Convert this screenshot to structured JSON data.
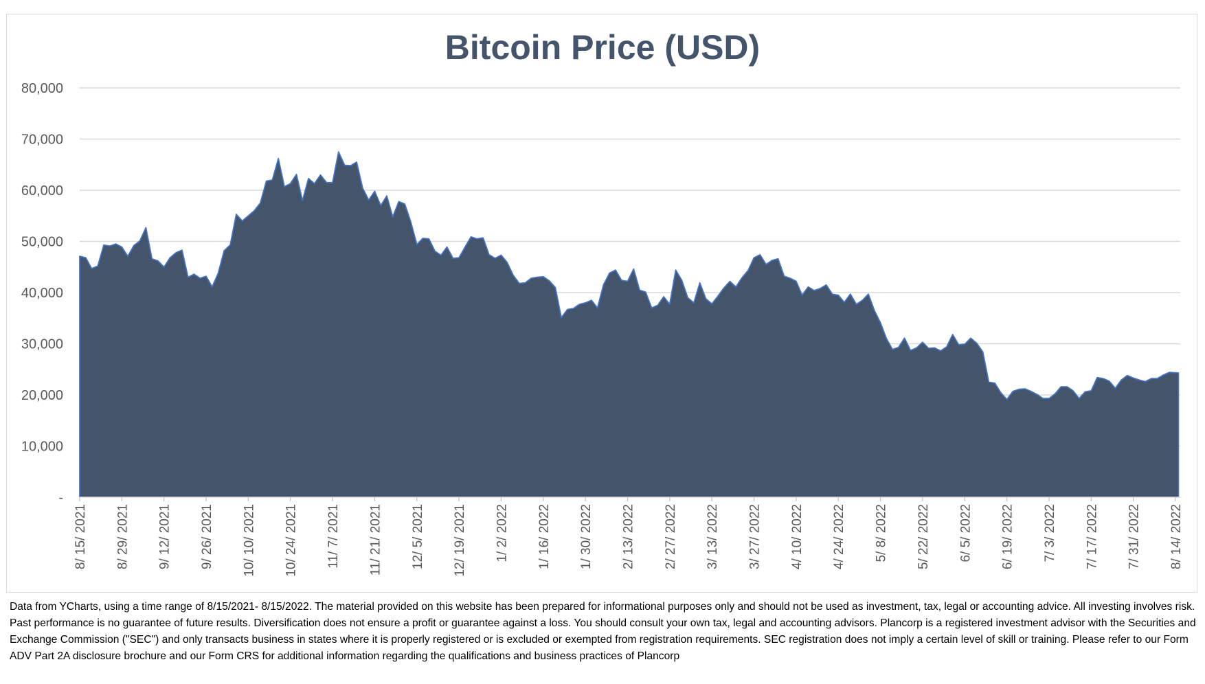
{
  "chart_data": {
    "type": "area",
    "title": "Bitcoin Price (USD)",
    "xlabel": "",
    "ylabel": "",
    "ylim": [
      0,
      80000
    ],
    "grid": true,
    "legend": "none",
    "yticks": [
      {
        "value": 0,
        "label": "-"
      },
      {
        "value": 10000,
        "label": "10,000"
      },
      {
        "value": 20000,
        "label": "20,000"
      },
      {
        "value": 30000,
        "label": "30,000"
      },
      {
        "value": 40000,
        "label": "40,000"
      },
      {
        "value": 50000,
        "label": "50,000"
      },
      {
        "value": 60000,
        "label": "60,000"
      },
      {
        "value": 70000,
        "label": "70,000"
      },
      {
        "value": 80000,
        "label": "80,000"
      }
    ],
    "xticks": [
      "8/ 15/ 2021",
      "8/ 29/ 2021",
      "9/ 12/ 2021",
      "9/ 26/ 2021",
      "10/ 10/ 2021",
      "10/ 24/ 2021",
      "11/ 7/ 2021",
      "11/ 21/ 2021",
      "12/ 5/ 2021",
      "12/ 19/ 2021",
      "1/ 2/ 2022",
      "1/ 16/ 2022",
      "1/ 30/ 2022",
      "2/ 13/ 2022",
      "2/ 27/ 2022",
      "3/ 13/ 2022",
      "3/ 27/ 2022",
      "4/ 10/ 2022",
      "4/ 24/ 2022",
      "5/ 8/ 2022",
      "5/ 22/ 2022",
      "6/ 5/ 2022",
      "6/ 19/ 2022",
      "7/ 3/ 2022",
      "7/ 17/ 2022",
      "7/ 31/ 2022",
      "8/ 14/ 2022"
    ],
    "fill_color": "#44546a",
    "line_color": "#4472c4",
    "series": [
      {
        "values": [
          [
            "8/15/2021",
            47100
          ],
          [
            "8/17/2021",
            46800
          ],
          [
            "8/19/2021",
            44700
          ],
          [
            "8/21/2021",
            45200
          ],
          [
            "8/23/2021",
            49300
          ],
          [
            "8/25/2021",
            49100
          ],
          [
            "8/27/2021",
            49500
          ],
          [
            "8/29/2021",
            48900
          ],
          [
            "8/31/2021",
            47100
          ],
          [
            "9/2/2021",
            49200
          ],
          [
            "9/4/2021",
            50100
          ],
          [
            "9/6/2021",
            52700
          ],
          [
            "9/8/2021",
            46600
          ],
          [
            "9/10/2021",
            46200
          ],
          [
            "9/12/2021",
            45000
          ],
          [
            "9/14/2021",
            46800
          ],
          [
            "9/16/2021",
            47800
          ],
          [
            "9/18/2021",
            48300
          ],
          [
            "9/20/2021",
            43000
          ],
          [
            "9/22/2021",
            43600
          ],
          [
            "9/24/2021",
            42800
          ],
          [
            "9/26/2021",
            43200
          ],
          [
            "9/28/2021",
            41100
          ],
          [
            "9/30/2021",
            43800
          ],
          [
            "10/2/2021",
            48200
          ],
          [
            "10/4/2021",
            49300
          ],
          [
            "10/6/2021",
            55300
          ],
          [
            "10/8/2021",
            54000
          ],
          [
            "10/10/2021",
            55000
          ],
          [
            "10/12/2021",
            56000
          ],
          [
            "10/14/2021",
            57500
          ],
          [
            "10/16/2021",
            61800
          ],
          [
            "10/18/2021",
            62000
          ],
          [
            "10/20/2021",
            66200
          ],
          [
            "10/22/2021",
            60700
          ],
          [
            "10/24/2021",
            61300
          ],
          [
            "10/26/2021",
            63100
          ],
          [
            "10/28/2021",
            58000
          ],
          [
            "10/30/2021",
            62300
          ],
          [
            "11/1/2021",
            61300
          ],
          [
            "11/3/2021",
            63000
          ],
          [
            "11/5/2021",
            61500
          ],
          [
            "11/7/2021",
            61500
          ],
          [
            "11/9/2021",
            67500
          ],
          [
            "11/11/2021",
            64900
          ],
          [
            "11/13/2021",
            64800
          ],
          [
            "11/15/2021",
            65500
          ],
          [
            "11/17/2021",
            60400
          ],
          [
            "11/19/2021",
            58100
          ],
          [
            "11/21/2021",
            59800
          ],
          [
            "11/23/2021",
            57000
          ],
          [
            "11/25/2021",
            58900
          ],
          [
            "11/27/2021",
            54800
          ],
          [
            "11/29/2021",
            57800
          ],
          [
            "12/1/2021",
            57300
          ],
          [
            "12/3/2021",
            53800
          ],
          [
            "12/5/2021",
            49400
          ],
          [
            "12/7/2021",
            50600
          ],
          [
            "12/9/2021",
            50500
          ],
          [
            "12/11/2021",
            48100
          ],
          [
            "12/13/2021",
            47300
          ],
          [
            "12/15/2021",
            48900
          ],
          [
            "12/17/2021",
            46700
          ],
          [
            "12/19/2021",
            46800
          ],
          [
            "12/21/2021",
            48900
          ],
          [
            "12/23/2021",
            50900
          ],
          [
            "12/25/2021",
            50500
          ],
          [
            "12/27/2021",
            50700
          ],
          [
            "12/29/2021",
            47400
          ],
          [
            "12/31/2021",
            46700
          ],
          [
            "1/2/2022",
            47300
          ],
          [
            "1/4/2022",
            45900
          ],
          [
            "1/6/2022",
            43400
          ],
          [
            "1/8/2022",
            41800
          ],
          [
            "1/10/2022",
            41900
          ],
          [
            "1/12/2022",
            42800
          ],
          [
            "1/14/2022",
            43000
          ],
          [
            "1/16/2022",
            43100
          ],
          [
            "1/18/2022",
            42300
          ],
          [
            "1/20/2022",
            41000
          ],
          [
            "1/22/2022",
            35100
          ],
          [
            "1/24/2022",
            36700
          ],
          [
            "1/26/2022",
            36900
          ],
          [
            "1/28/2022",
            37700
          ],
          [
            "1/30/2022",
            38000
          ],
          [
            "2/1/2022",
            38500
          ],
          [
            "2/3/2022",
            37000
          ],
          [
            "2/5/2022",
            41500
          ],
          [
            "2/7/2022",
            43800
          ],
          [
            "2/9/2022",
            44400
          ],
          [
            "2/11/2022",
            42400
          ],
          [
            "2/13/2022",
            42200
          ],
          [
            "2/15/2022",
            44600
          ],
          [
            "2/17/2022",
            40500
          ],
          [
            "2/19/2022",
            40100
          ],
          [
            "2/21/2022",
            37000
          ],
          [
            "2/23/2022",
            37500
          ],
          [
            "2/25/2022",
            39200
          ],
          [
            "2/27/2022",
            37700
          ],
          [
            "3/1/2022",
            44400
          ],
          [
            "3/3/2022",
            42400
          ],
          [
            "3/5/2022",
            39000
          ],
          [
            "3/7/2022",
            38000
          ],
          [
            "3/9/2022",
            41900
          ],
          [
            "3/11/2022",
            38800
          ],
          [
            "3/13/2022",
            37800
          ],
          [
            "3/15/2022",
            39300
          ],
          [
            "3/17/2022",
            40900
          ],
          [
            "3/19/2022",
            42200
          ],
          [
            "3/21/2022",
            41100
          ],
          [
            "3/23/2022",
            42900
          ],
          [
            "3/25/2022",
            44300
          ],
          [
            "3/27/2022",
            46800
          ],
          [
            "3/29/2022",
            47400
          ],
          [
            "3/31/2022",
            45500
          ],
          [
            "4/2/2022",
            46300
          ],
          [
            "4/4/2022",
            46600
          ],
          [
            "4/6/2022",
            43200
          ],
          [
            "4/8/2022",
            42800
          ],
          [
            "4/10/2022",
            42200
          ],
          [
            "4/12/2022",
            39500
          ],
          [
            "4/14/2022",
            41100
          ],
          [
            "4/16/2022",
            40400
          ],
          [
            "4/18/2022",
            40800
          ],
          [
            "4/20/2022",
            41500
          ],
          [
            "4/22/2022",
            39700
          ],
          [
            "4/24/2022",
            39500
          ],
          [
            "4/26/2022",
            38100
          ],
          [
            "4/28/2022",
            39700
          ],
          [
            "4/30/2022",
            37700
          ],
          [
            "5/2/2022",
            38500
          ],
          [
            "5/4/2022",
            39700
          ],
          [
            "5/6/2022",
            36500
          ],
          [
            "5/8/2022",
            34100
          ],
          [
            "5/10/2022",
            31000
          ],
          [
            "5/12/2022",
            28900
          ],
          [
            "5/14/2022",
            29300
          ],
          [
            "5/16/2022",
            31100
          ],
          [
            "5/18/2022",
            28700
          ],
          [
            "5/20/2022",
            29200
          ],
          [
            "5/22/2022",
            30300
          ],
          [
            "5/24/2022",
            29100
          ],
          [
            "5/26/2022",
            29200
          ],
          [
            "5/28/2022",
            28600
          ],
          [
            "5/30/2022",
            29400
          ],
          [
            "6/1/2022",
            31800
          ],
          [
            "6/3/2022",
            29800
          ],
          [
            "6/5/2022",
            29900
          ],
          [
            "6/7/2022",
            31100
          ],
          [
            "6/9/2022",
            30100
          ],
          [
            "6/11/2022",
            28400
          ],
          [
            "6/13/2022",
            22500
          ],
          [
            "6/15/2022",
            22300
          ],
          [
            "6/17/2022",
            20400
          ],
          [
            "6/19/2022",
            19100
          ],
          [
            "6/21/2022",
            20700
          ],
          [
            "6/23/2022",
            21100
          ],
          [
            "6/25/2022",
            21200
          ],
          [
            "6/27/2022",
            20700
          ],
          [
            "6/29/2022",
            20100
          ],
          [
            "7/1/2022",
            19300
          ],
          [
            "7/3/2022",
            19300
          ],
          [
            "7/5/2022",
            20200
          ],
          [
            "7/7/2022",
            21600
          ],
          [
            "7/9/2022",
            21600
          ],
          [
            "7/11/2022",
            20800
          ],
          [
            "7/13/2022",
            19300
          ],
          [
            "7/15/2022",
            20600
          ],
          [
            "7/17/2022",
            20800
          ],
          [
            "7/19/2022",
            23400
          ],
          [
            "7/21/2022",
            23200
          ],
          [
            "7/23/2022",
            22700
          ],
          [
            "7/25/2022",
            21300
          ],
          [
            "7/27/2022",
            22900
          ],
          [
            "7/29/2022",
            23800
          ],
          [
            "7/31/2022",
            23300
          ],
          [
            "8/2/2022",
            22900
          ],
          [
            "8/4/2022",
            22600
          ],
          [
            "8/6/2022",
            23200
          ],
          [
            "8/8/2022",
            23200
          ],
          [
            "8/10/2022",
            23900
          ],
          [
            "8/12/2022",
            24400
          ],
          [
            "8/15/2022",
            24300
          ]
        ]
      }
    ]
  },
  "disclaimer": "Data from YCharts, using a time range of 8/15/2021- 8/15/2022. The material provided on this website has been prepared for informational purposes only and should not be used as investment, tax, legal or accounting advice. All investing involves risk. Past performance is no guarantee of future results. Diversification does not ensure a profit or guarantee against a loss. You should consult your own tax, legal and accounting advisors. Plancorp is a registered investment advisor with the Securities and Exchange Commission (\"SEC\") and only transacts business in states where it is properly registered or is excluded or exempted from registration requirements. SEC registration does not imply a certain level of skill or training. Please refer to our Form ADV Part 2A disclosure brochure and our Form CRS for additional information regarding the qualifications and business practices of Plancorp"
}
